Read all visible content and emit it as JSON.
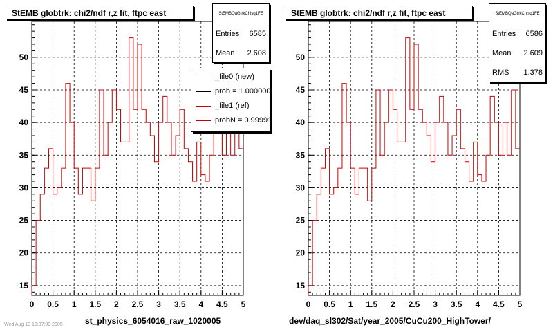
{
  "chart_data": [
    {
      "type": "histogram",
      "title": "StEMB globtrk: chi2/ndf r,z fit, ftpc east",
      "xlabel": "st_physics_6054016_raw_1020005",
      "ylabel": "",
      "xlim": [
        0,
        5
      ],
      "ylim": [
        13.5,
        55.5
      ],
      "grid": true,
      "xticks": [
        "0",
        "0.5",
        "1",
        "1.5",
        "2",
        "2.5",
        "3",
        "3.5",
        "4",
        "4.5",
        "5"
      ],
      "yticks": [
        "15",
        "20",
        "25",
        "30",
        "35",
        "40",
        "45",
        "50"
      ],
      "bin_width": 0.1,
      "series": [
        {
          "name": "_file1 (ref)",
          "color": "#cc0000",
          "values": [
            15,
            25,
            29,
            33,
            36,
            29,
            30,
            33,
            46,
            40,
            33,
            29,
            33,
            33,
            28,
            33,
            45,
            35,
            40,
            45,
            42,
            37,
            37,
            53,
            42,
            52,
            42,
            40,
            38,
            34,
            40,
            44,
            40,
            35,
            38,
            42,
            36,
            34,
            31,
            37,
            32,
            31,
            35,
            44,
            40,
            35,
            40,
            35,
            45,
            36
          ]
        }
      ],
      "stats": {
        "name": "StEMBQaGtrkChisq1FE",
        "rows": [
          {
            "label": "Entries",
            "value": "6585"
          },
          {
            "label": "Mean",
            "value": "2.608"
          }
        ]
      },
      "legend": {
        "position": "top-right",
        "entries": [
          {
            "label": "_file0 (new)",
            "color": "#000000"
          },
          {
            "label": "prob = 1.000000",
            "color": "#000000"
          },
          {
            "label": "_file1 (ref)",
            "color": "#cc0000"
          },
          {
            "label": "probN = 0.999914",
            "color": "#cc0000"
          }
        ]
      }
    },
    {
      "type": "histogram",
      "title": "StEMB globtrk: chi2/ndf r,z fit, ftpc east",
      "xlabel": "dev/daq_sl302/Sat/year_2005/CuCu200_HighTower/",
      "ylabel": "",
      "xlim": [
        0,
        5
      ],
      "ylim": [
        13.5,
        55.5
      ],
      "grid": true,
      "xticks": [
        "0",
        "0.5",
        "1",
        "1.5",
        "2",
        "2.5",
        "3",
        "3.5",
        "4",
        "4.5",
        "5"
      ],
      "yticks": [
        "15",
        "20",
        "25",
        "30",
        "35",
        "40",
        "45",
        "50"
      ],
      "bin_width": 0.1,
      "series": [
        {
          "name": "",
          "color": "#cc0000",
          "values": [
            15,
            25,
            29,
            33,
            36,
            29,
            30,
            33,
            46,
            40,
            33,
            29,
            33,
            33,
            28,
            33,
            45,
            35,
            40,
            45,
            42,
            37,
            37,
            53,
            42,
            52,
            42,
            40,
            38,
            34,
            40,
            44,
            40,
            35,
            38,
            42,
            36,
            34,
            31,
            37,
            32,
            31,
            35,
            44,
            40,
            35,
            40,
            35,
            45,
            36
          ]
        }
      ],
      "stats": {
        "name": "StEMBQaGtrkChisq1FE",
        "rows": [
          {
            "label": "Entries",
            "value": "6586"
          },
          {
            "label": "Mean",
            "value": "2.609"
          },
          {
            "label": "RMS",
            "value": "1.378"
          }
        ]
      }
    }
  ],
  "footer": "Wed Aug 10 10:07:00 2005"
}
